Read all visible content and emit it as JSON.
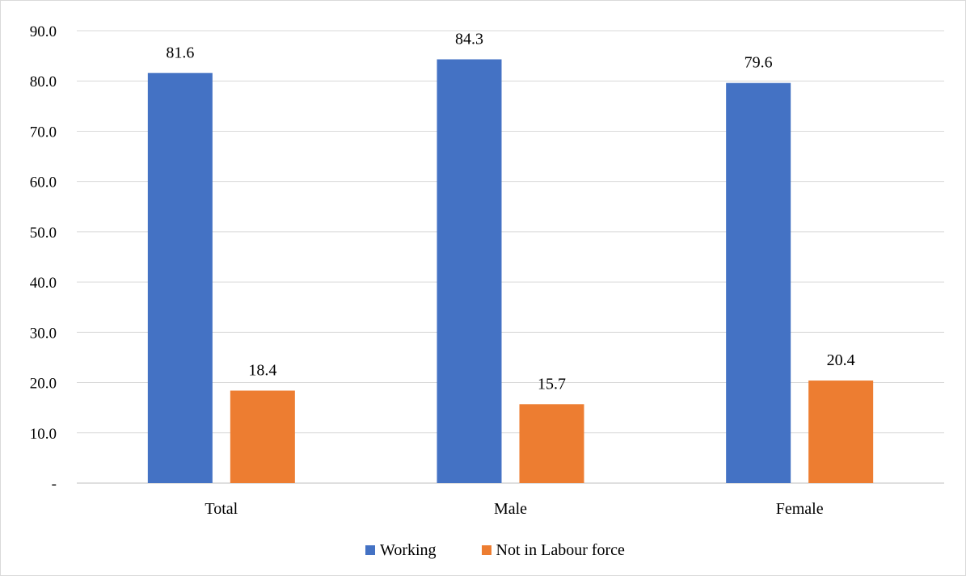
{
  "chart_data": {
    "type": "bar",
    "title": "",
    "xlabel": "",
    "ylabel": "",
    "categories": [
      "Total",
      "Male",
      "Female"
    ],
    "series": [
      {
        "name": "Working",
        "color": "#4472C4",
        "values": [
          81.6,
          84.3,
          79.6
        ],
        "labels": [
          "81.6",
          "84.3",
          "79.6"
        ]
      },
      {
        "name": "Not in Labour force",
        "color": "#ED7D31",
        "values": [
          18.4,
          15.7,
          20.4
        ],
        "labels": [
          "18.4",
          "15.7",
          "20.4"
        ]
      }
    ],
    "ylim": [
      0,
      90
    ],
    "yticks": [
      0,
      10,
      20,
      30,
      40,
      50,
      60,
      70,
      80,
      90
    ],
    "ytick_labels": [
      "-",
      "10.0",
      "20.0",
      "30.0",
      "40.0",
      "50.0",
      "60.0",
      "70.0",
      "80.0",
      "90.0"
    ],
    "grid": true,
    "legend_position": "bottom"
  }
}
